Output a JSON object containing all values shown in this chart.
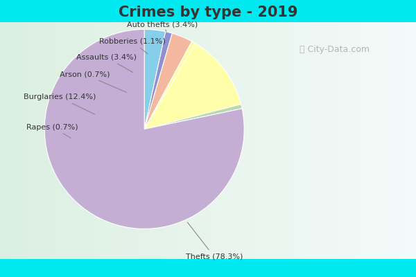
{
  "title": "Crimes by type - 2019",
  "ordered_labels": [
    "Auto thefts",
    "Robberies",
    "Assaults",
    "Arson",
    "Burglaries",
    "Rapes",
    "Thefts"
  ],
  "ordered_values": [
    3.4,
    1.1,
    3.4,
    0.7,
    12.4,
    0.7,
    78.3
  ],
  "ordered_colors": [
    "#87ceeb",
    "#9090d0",
    "#f4b8a0",
    "#ffffa0",
    "#ffffaa",
    "#b8d8b0",
    "#c4aed4"
  ],
  "ordered_display": [
    "Auto thefts (3.4%)",
    "Robberies (1.1%)",
    "Assaults (3.4%)",
    "Arson (0.7%)",
    "Burglaries (12.4%)",
    "Rapes (0.7%)",
    "Thefts (78.3%)"
  ],
  "background_cyan": "#00e8f0",
  "background_green_top": "#d8ede0",
  "background_green_bot": "#c8e8d0",
  "title_fontsize": 15,
  "label_fontsize": 8,
  "figsize": [
    6.0,
    4.0
  ],
  "dpi": 100
}
